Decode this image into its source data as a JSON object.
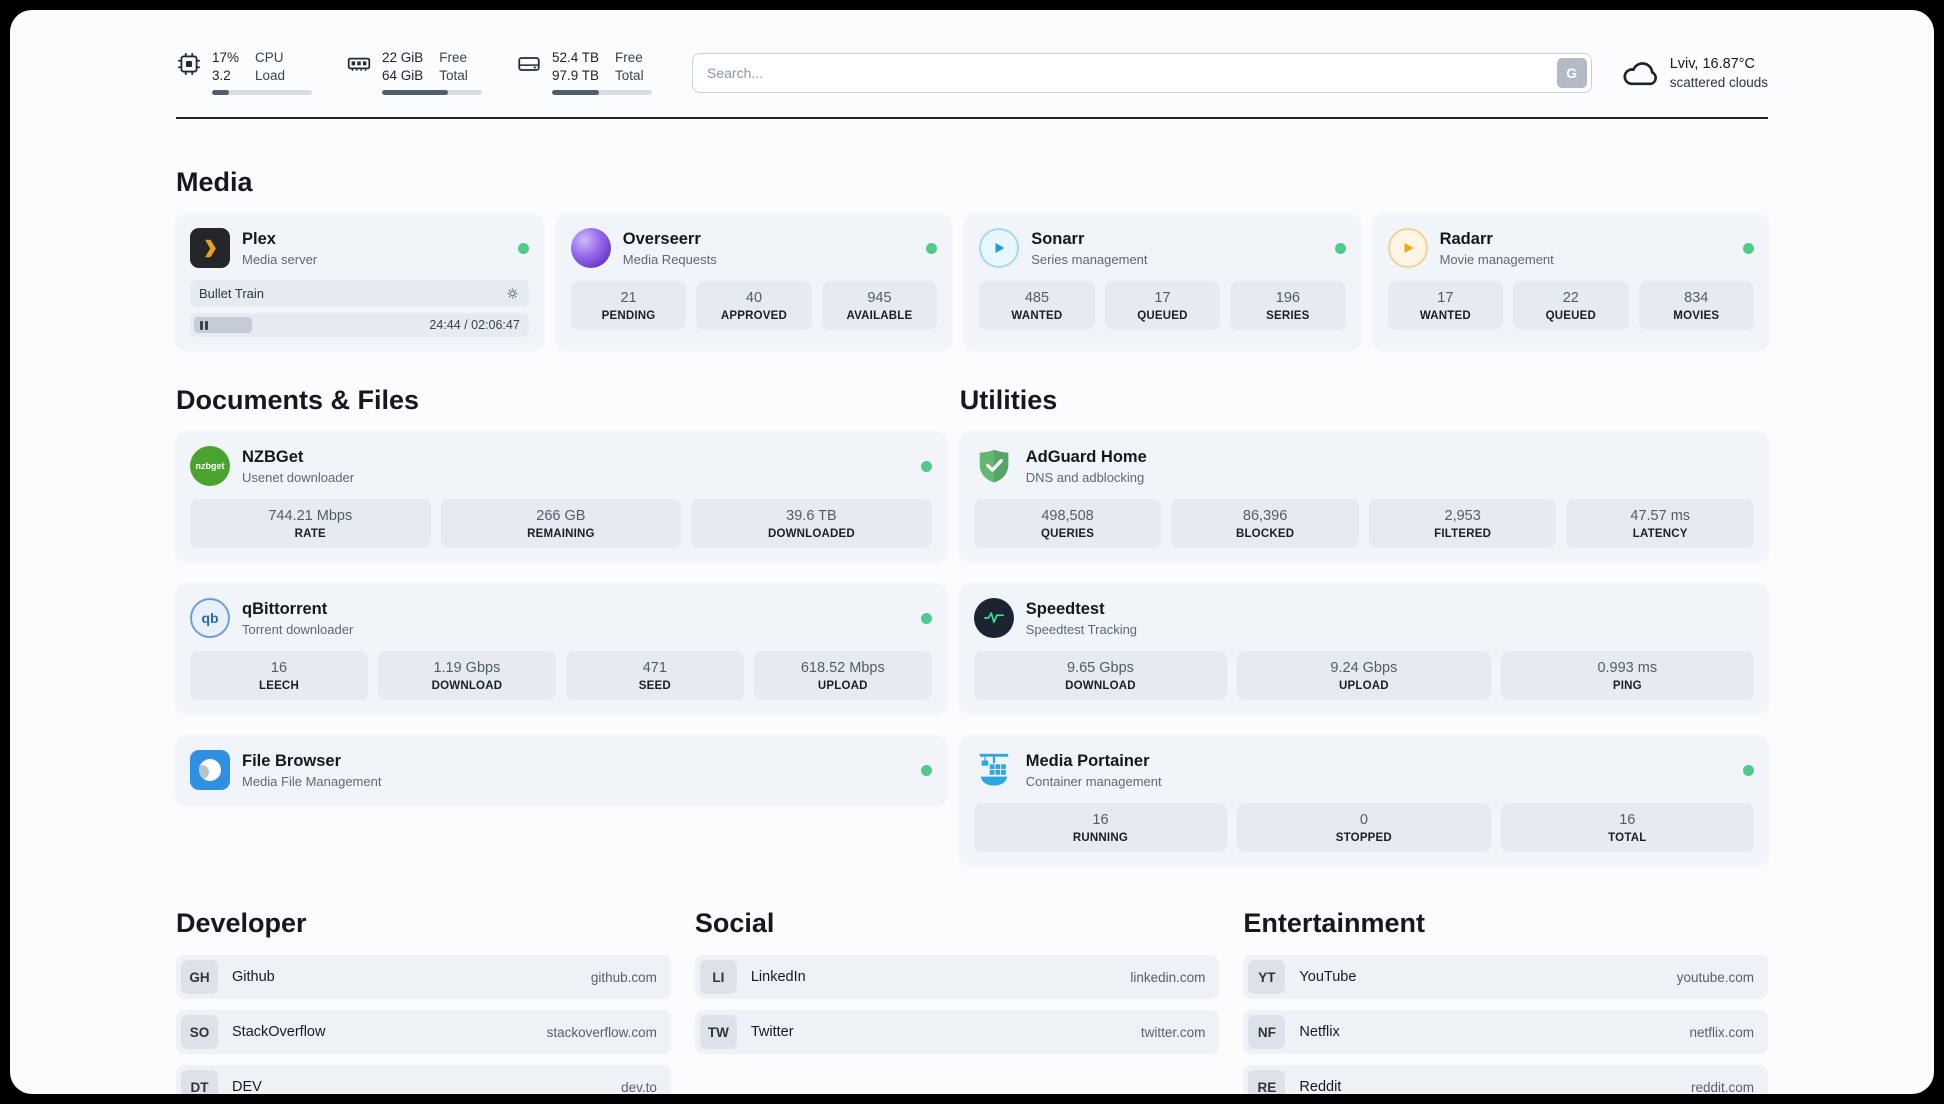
{
  "header": {
    "cpu": {
      "icon": "cpu-chip-icon",
      "value_percent": "17%",
      "value_load": "3.2",
      "label_top": "CPU",
      "label_bottom": "Load",
      "bar_fill": 17
    },
    "memory": {
      "icon": "ram-icon",
      "value_free": "22 GiB",
      "value_total": "64 GiB",
      "label_top": "Free",
      "label_bottom": "Total",
      "bar_fill": 66
    },
    "storage": {
      "icon": "disk-icon",
      "value_free": "52.4 TB",
      "value_total": "97.9 TB",
      "label_top": "Free",
      "label_bottom": "Total",
      "bar_fill": 47
    },
    "search": {
      "placeholder": "Search...",
      "button_label": "G"
    },
    "weather": {
      "icon": "cloud-icon",
      "location": "Lviv, 16.87°C",
      "condition": "scattered clouds"
    }
  },
  "sections": {
    "media": {
      "title": "Media"
    },
    "documents": {
      "title": "Documents & Files"
    },
    "utilities": {
      "title": "Utilities"
    },
    "developer": {
      "title": "Developer"
    },
    "social": {
      "title": "Social"
    },
    "entertainment": {
      "title": "Entertainment"
    }
  },
  "services": {
    "plex": {
      "icon": "plex-icon",
      "name": "Plex",
      "subtitle": "Media server",
      "status": "online",
      "now_playing": {
        "title": "Bullet Train",
        "time": "24:44 / 02:06:47"
      }
    },
    "overseerr": {
      "icon": "overseerr-icon",
      "name": "Overseerr",
      "subtitle": "Media Requests",
      "status": "online",
      "stats": [
        {
          "value": "21",
          "label": "PENDING"
        },
        {
          "value": "40",
          "label": "APPROVED"
        },
        {
          "value": "945",
          "label": "AVAILABLE"
        }
      ]
    },
    "sonarr": {
      "icon": "sonarr-icon",
      "name": "Sonarr",
      "subtitle": "Series management",
      "status": "online",
      "stats": [
        {
          "value": "485",
          "label": "WANTED"
        },
        {
          "value": "17",
          "label": "QUEUED"
        },
        {
          "value": "196",
          "label": "SERIES"
        }
      ]
    },
    "radarr": {
      "icon": "radarr-icon",
      "name": "Radarr",
      "subtitle": "Movie management",
      "status": "online",
      "stats": [
        {
          "value": "17",
          "label": "WANTED"
        },
        {
          "value": "22",
          "label": "QUEUED"
        },
        {
          "value": "834",
          "label": "MOVIES"
        }
      ]
    },
    "nzbget": {
      "icon": "nzbget-icon",
      "icon_text": "nzbget",
      "name": "NZBGet",
      "subtitle": "Usenet downloader",
      "status": "online",
      "stats": [
        {
          "value": "744.21 Mbps",
          "label": "RATE"
        },
        {
          "value": "266 GB",
          "label": "REMAINING"
        },
        {
          "value": "39.6 TB",
          "label": "DOWNLOADED"
        }
      ]
    },
    "qbittorrent": {
      "icon": "qbittorrent-icon",
      "icon_text": "qb",
      "name": "qBittorrent",
      "subtitle": "Torrent downloader",
      "status": "online",
      "stats": [
        {
          "value": "16",
          "label": "LEECH"
        },
        {
          "value": "1.19 Gbps",
          "label": "DOWNLOAD"
        },
        {
          "value": "471",
          "label": "SEED"
        },
        {
          "value": "618.52 Mbps",
          "label": "UPLOAD"
        }
      ]
    },
    "filebrowser": {
      "icon": "filebrowser-icon",
      "name": "File Browser",
      "subtitle": "Media File Management",
      "status": "online"
    },
    "adguard": {
      "icon": "adguard-icon",
      "name": "AdGuard Home",
      "subtitle": "DNS and adblocking",
      "stats": [
        {
          "value": "498,508",
          "label": "QUERIES"
        },
        {
          "value": "86,396",
          "label": "BLOCKED"
        },
        {
          "value": "2,953",
          "label": "FILTERED"
        },
        {
          "value": "47.57 ms",
          "label": "LATENCY"
        }
      ]
    },
    "speedtest": {
      "icon": "speedtest-icon",
      "name": "Speedtest",
      "subtitle": "Speedtest Tracking",
      "stats": [
        {
          "value": "9.65 Gbps",
          "label": "DOWNLOAD"
        },
        {
          "value": "9.24 Gbps",
          "label": "UPLOAD"
        },
        {
          "value": "0.993 ms",
          "label": "PING"
        }
      ]
    },
    "portainer": {
      "icon": "portainer-icon",
      "name": "Media Portainer",
      "subtitle": "Container management",
      "status": "online",
      "stats": [
        {
          "value": "16",
          "label": "RUNNING"
        },
        {
          "value": "0",
          "label": "STOPPED"
        },
        {
          "value": "16",
          "label": "TOTAL"
        }
      ]
    }
  },
  "bookmarks": {
    "developer": [
      {
        "abbr": "GH",
        "name": "Github",
        "url": "github.com"
      },
      {
        "abbr": "SO",
        "name": "StackOverflow",
        "url": "stackoverflow.com"
      },
      {
        "abbr": "DT",
        "name": "DEV",
        "url": "dev.to"
      }
    ],
    "social": [
      {
        "abbr": "LI",
        "name": "LinkedIn",
        "url": "linkedin.com"
      },
      {
        "abbr": "TW",
        "name": "Twitter",
        "url": "twitter.com"
      }
    ],
    "entertainment": [
      {
        "abbr": "YT",
        "name": "YouTube",
        "url": "youtube.com"
      },
      {
        "abbr": "NF",
        "name": "Netflix",
        "url": "netflix.com"
      },
      {
        "abbr": "RE",
        "name": "Reddit",
        "url": "reddit.com"
      }
    ]
  },
  "colors": {
    "status_online": "#4ecb8d",
    "divider": "#20252c"
  }
}
